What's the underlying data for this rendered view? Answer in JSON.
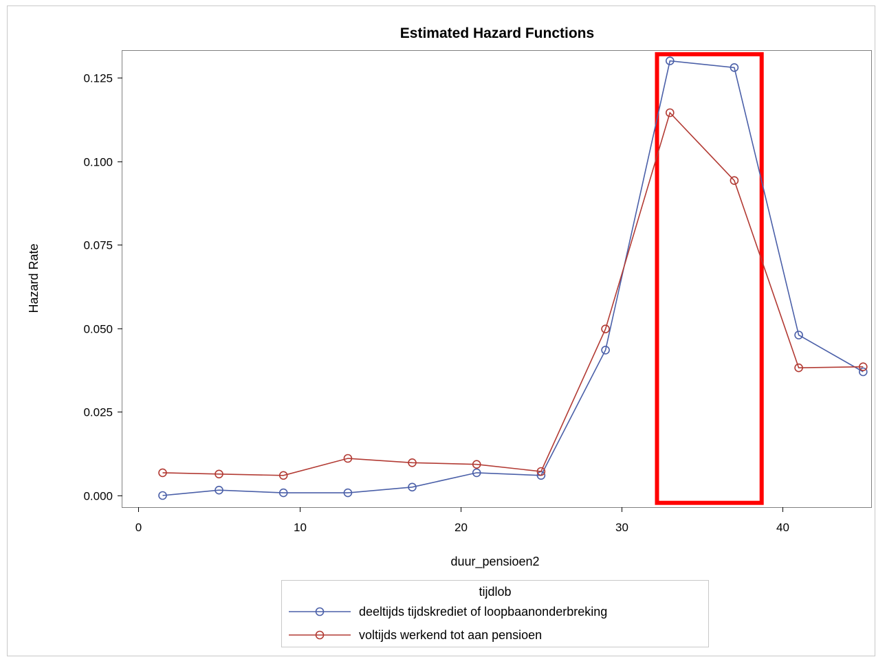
{
  "chart_data": {
    "type": "line",
    "title": "Estimated Hazard Functions",
    "xlabel": "duur_pensioen2",
    "ylabel": "Hazard Rate",
    "xlim": [
      -1,
      45.5
    ],
    "ylim": [
      -0.0035,
      0.133
    ],
    "xticks": [
      0,
      10,
      20,
      30,
      40
    ],
    "yticks": [
      0.0,
      0.025,
      0.05,
      0.075,
      0.1,
      0.125
    ],
    "ytick_labels": [
      "0.000",
      "0.025",
      "0.050",
      "0.075",
      "0.100",
      "0.125"
    ],
    "grid": false,
    "legend": {
      "title": "tijdlob",
      "position": "bottom"
    },
    "marker": "circle",
    "series": [
      {
        "name": "deeltijds tijdskrediet of loopbaanonderbreking",
        "color": "#4a5fa8",
        "x": [
          1.5,
          5,
          9,
          13,
          17,
          21,
          25,
          29,
          33,
          37,
          41,
          45
        ],
        "y": [
          0.0,
          0.0016,
          0.0008,
          0.0008,
          0.0025,
          0.0068,
          0.006,
          0.0435,
          0.13,
          0.128,
          0.048,
          0.037
        ]
      },
      {
        "name": "voltijds werkend tot aan pensioen",
        "color": "#b23a33",
        "x": [
          1.5,
          5,
          9,
          13,
          17,
          21,
          25,
          29,
          33,
          37,
          41,
          45
        ],
        "y": [
          0.0068,
          0.0064,
          0.006,
          0.0111,
          0.0098,
          0.0093,
          0.0072,
          0.0498,
          0.1145,
          0.0942,
          0.0382,
          0.0385
        ]
      }
    ],
    "annotations": [
      {
        "type": "rectangle",
        "color": "#ff0000",
        "x_range": [
          32.2,
          38.7
        ],
        "y_range": [
          -0.0022,
          0.132
        ]
      }
    ]
  }
}
